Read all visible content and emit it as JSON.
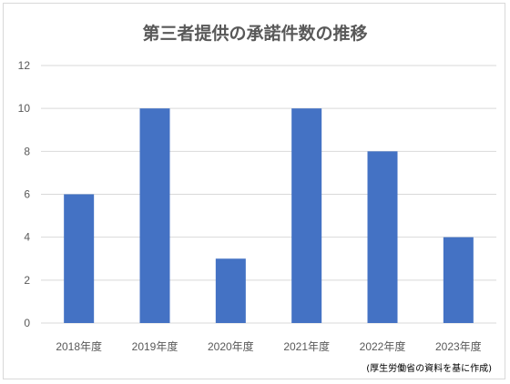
{
  "chart_data": {
    "type": "bar",
    "title": "第三者提供の承諾件数の推移",
    "categories": [
      "2018年度",
      "2019年度",
      "2020年度",
      "2021年度",
      "2022年度",
      "2023年度"
    ],
    "values": [
      6,
      10,
      3,
      10,
      8,
      4
    ],
    "ylim": [
      0,
      12
    ],
    "yticks": [
      "0",
      "2",
      "4",
      "6",
      "8",
      "10",
      "12"
    ],
    "xlabel": "",
    "ylabel": "",
    "grid": true,
    "bar_color": "#4472c4",
    "source_note": "(厚生労働省の資料を基に作成)"
  }
}
